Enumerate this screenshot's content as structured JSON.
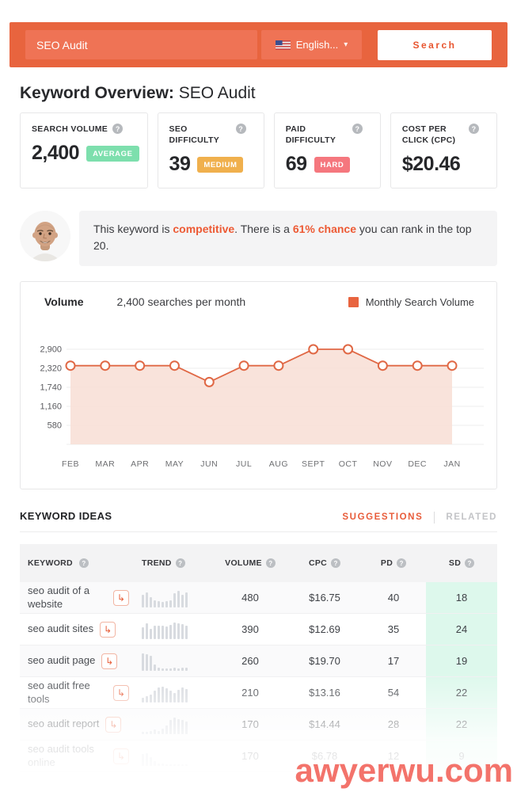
{
  "colors": {
    "topbar_bg": "#e8643e",
    "topbar_input_bg": "#ef7355",
    "accent_text": "#ed5a34",
    "badge_average": "#7ddfad",
    "badge_medium": "#f0b04d",
    "badge_hard": "#f5777e",
    "sd_column_bg": "#ddf8ec",
    "chart_line": "#e06845",
    "chart_fill": "#f8dcd2",
    "watermark": "#f3736b"
  },
  "topbar": {
    "search_value": "SEO Audit",
    "language_label": "English...",
    "flag_icon": "us-flag",
    "search_button": "Search"
  },
  "page_title": {
    "bold": "Keyword Overview:",
    "regular": " SEO Audit"
  },
  "metric_cards": [
    {
      "label": "SEARCH VOLUME",
      "value": "2,400",
      "badge": "AVERAGE",
      "badge_color": "#7ddfad"
    },
    {
      "label": "SEO DIFFICULTY",
      "value": "39",
      "badge": "MEDIUM",
      "badge_color": "#f0b04d"
    },
    {
      "label": "PAID DIFFICULTY",
      "value": "69",
      "badge": "HARD",
      "badge_color": "#f5777e"
    },
    {
      "label": "COST PER CLICK (CPC)",
      "value": "$20.46",
      "badge": null,
      "badge_color": null
    }
  ],
  "insight": {
    "text_before": "This keyword is ",
    "highlight1": "competitive",
    "text_middle": ". There is a ",
    "highlight2": "61% chance",
    "text_after": " you can rank in the top 20."
  },
  "chart_header": {
    "title": "Volume",
    "subtitle": "2,400 searches per month",
    "legend": "Monthly Search Volume",
    "legend_color": "#e8643f"
  },
  "chart_data": {
    "type": "area",
    "title": "Monthly Search Volume",
    "x": [
      "FEB",
      "MAR",
      "APR",
      "MAY",
      "JUN",
      "JUL",
      "AUG",
      "SEPT",
      "OCT",
      "NOV",
      "DEC",
      "JAN"
    ],
    "values": [
      2400,
      2400,
      2400,
      2400,
      1900,
      2400,
      2400,
      2900,
      2900,
      2400,
      2400,
      2400
    ],
    "y_ticks": [
      {
        "v": 2900,
        "label": "2,900"
      },
      {
        "v": 2320,
        "label": "2,320"
      },
      {
        "v": 1740,
        "label": "1,740"
      },
      {
        "v": 1160,
        "label": "1,160"
      },
      {
        "v": 580,
        "label": "580"
      }
    ],
    "ylim": [
      0,
      3050
    ],
    "grid": true,
    "legend_position": "top-right",
    "line_color": "#e06845",
    "fill_color": "#f8dcd2"
  },
  "keyword_ideas": {
    "title": "KEYWORD IDEAS",
    "tabs": [
      {
        "label": "SUGGESTIONS",
        "active": true
      },
      {
        "label": "RELATED",
        "active": false
      }
    ]
  },
  "table": {
    "columns": [
      "KEYWORD",
      "TREND",
      "VOLUME",
      "CPC",
      "PD",
      "SD"
    ],
    "rows": [
      {
        "keyword": "seo audit of a website",
        "volume": "480",
        "cpc": "$16.75",
        "pd": "40",
        "sd": "18",
        "trend": [
          60,
          72,
          50,
          34,
          28,
          26,
          30,
          34,
          66,
          78,
          58,
          72
        ]
      },
      {
        "keyword": "seo audit sites",
        "volume": "390",
        "cpc": "$12.69",
        "pd": "35",
        "sd": "24",
        "trend": [
          55,
          75,
          50,
          62,
          62,
          62,
          58,
          66,
          78,
          74,
          70,
          62
        ]
      },
      {
        "keyword": "seo audit page",
        "volume": "260",
        "cpc": "$19.70",
        "pd": "17",
        "sd": "19",
        "trend": [
          82,
          78,
          70,
          28,
          14,
          10,
          10,
          10,
          12,
          10,
          14,
          12
        ]
      },
      {
        "keyword": "seo audit free tools",
        "volume": "210",
        "cpc": "$13.16",
        "pd": "54",
        "sd": "22",
        "trend": [
          22,
          28,
          38,
          55,
          72,
          76,
          66,
          55,
          45,
          60,
          72,
          64
        ]
      },
      {
        "keyword": "seo audit report",
        "volume": "170",
        "cpc": "$14.44",
        "pd": "28",
        "sd": "22",
        "trend": [
          8,
          10,
          14,
          20,
          14,
          24,
          40,
          66,
          78,
          72,
          66,
          60
        ]
      },
      {
        "keyword": "seo audit tools online",
        "volume": "170",
        "cpc": "$6.78",
        "pd": "12",
        "sd": "9",
        "trend": [
          55,
          60,
          42,
          20,
          10,
          8,
          6,
          5,
          5,
          4,
          4,
          4
        ]
      }
    ]
  },
  "watermark": "awyerwu.com"
}
